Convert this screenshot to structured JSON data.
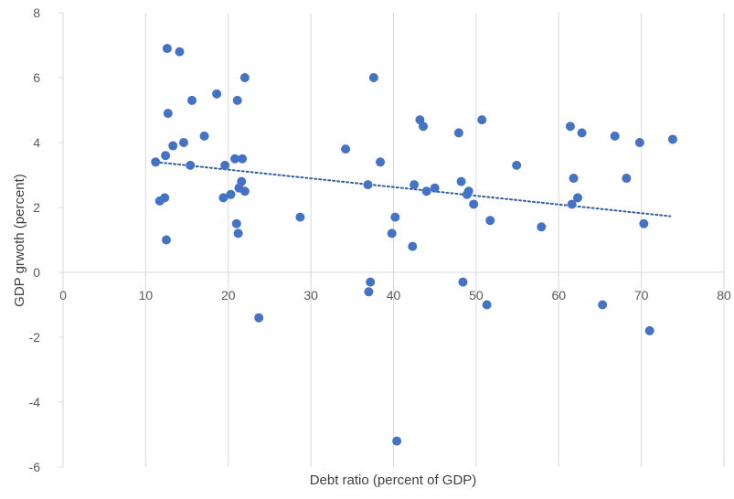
{
  "chart_data": {
    "type": "scatter",
    "title": "",
    "xlabel": "Debt ratio (percent of GDP)",
    "ylabel": "GDP grwoth (percent)",
    "xlim": [
      0,
      80
    ],
    "ylim": [
      -6,
      8
    ],
    "xticks": [
      0,
      10,
      20,
      30,
      40,
      50,
      60,
      70,
      80
    ],
    "yticks": [
      -6,
      -4,
      -2,
      0,
      2,
      4,
      6,
      8
    ],
    "grid": "vertical",
    "legend": "none",
    "marker_color": "#4472c4",
    "trendline": {
      "type": "linear",
      "style": "dotted",
      "color": "#2e5fa3",
      "x_range": [
        11.2,
        73.5
      ],
      "y_start": 3.4,
      "y_end": 1.73
    },
    "series": [
      {
        "points": [
          [
            11.2,
            3.4
          ],
          [
            11.7,
            2.2
          ],
          [
            12.3,
            2.3
          ],
          [
            12.4,
            3.6
          ],
          [
            12.5,
            1.0
          ],
          [
            12.6,
            6.9
          ],
          [
            12.7,
            4.9
          ],
          [
            13.3,
            3.9
          ],
          [
            14.1,
            6.8
          ],
          [
            14.6,
            4.0
          ],
          [
            15.4,
            3.3
          ],
          [
            15.6,
            5.3
          ],
          [
            17.1,
            4.2
          ],
          [
            18.6,
            5.5
          ],
          [
            19.4,
            2.3
          ],
          [
            19.6,
            3.3
          ],
          [
            20.3,
            2.4
          ],
          [
            20.8,
            3.5
          ],
          [
            21.0,
            1.5
          ],
          [
            21.1,
            5.3
          ],
          [
            21.2,
            1.2
          ],
          [
            21.3,
            2.6
          ],
          [
            21.6,
            2.8
          ],
          [
            21.7,
            3.5
          ],
          [
            22.0,
            6.0
          ],
          [
            22.0,
            2.5
          ],
          [
            23.7,
            -1.4
          ],
          [
            28.7,
            1.7
          ],
          [
            34.2,
            3.8
          ],
          [
            36.9,
            2.7
          ],
          [
            37.0,
            -0.6
          ],
          [
            37.2,
            -0.3
          ],
          [
            37.6,
            6.0
          ],
          [
            38.4,
            3.4
          ],
          [
            39.8,
            1.2
          ],
          [
            40.2,
            1.7
          ],
          [
            40.4,
            -5.2
          ],
          [
            42.3,
            0.8
          ],
          [
            42.5,
            2.7
          ],
          [
            43.2,
            4.7
          ],
          [
            43.6,
            4.5
          ],
          [
            44.0,
            2.5
          ],
          [
            45.0,
            2.6
          ],
          [
            47.9,
            4.3
          ],
          [
            48.2,
            2.8
          ],
          [
            48.4,
            -0.3
          ],
          [
            48.9,
            2.4
          ],
          [
            49.1,
            2.5
          ],
          [
            49.7,
            2.1
          ],
          [
            50.7,
            4.7
          ],
          [
            51.3,
            -1.0
          ],
          [
            51.7,
            1.6
          ],
          [
            54.9,
            3.3
          ],
          [
            57.9,
            1.4
          ],
          [
            61.4,
            4.5
          ],
          [
            61.6,
            2.1
          ],
          [
            61.8,
            2.9
          ],
          [
            62.3,
            2.3
          ],
          [
            62.8,
            4.3
          ],
          [
            65.3,
            -1.0
          ],
          [
            66.8,
            4.2
          ],
          [
            68.2,
            2.9
          ],
          [
            69.8,
            4.0
          ],
          [
            70.3,
            1.5
          ],
          [
            71.0,
            -1.8
          ],
          [
            73.8,
            4.1
          ]
        ]
      }
    ]
  }
}
